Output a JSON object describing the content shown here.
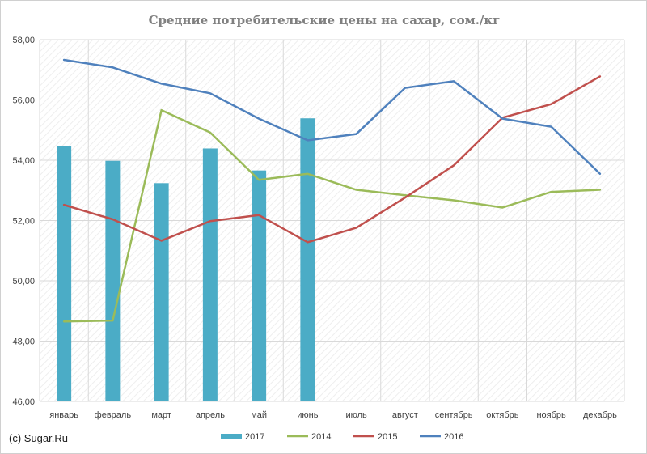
{
  "chart_data": {
    "type": "bar+line",
    "title": "Средние потребительские цены на сахар, сом./кг",
    "categories": [
      "январь",
      "февраль",
      "март",
      "апрель",
      "май",
      "июнь",
      "июль",
      "август",
      "сентябрь",
      "октябрь",
      "ноябрь",
      "декабрь"
    ],
    "ylim": [
      46,
      58
    ],
    "yticks": [
      "46,00",
      "48,00",
      "50,00",
      "52,00",
      "54,00",
      "56,00",
      "58,00"
    ],
    "grid": true,
    "legend_position": "bottom",
    "series": [
      {
        "name": "2017",
        "kind": "bar",
        "color": "#4bacc6",
        "values": [
          54.47,
          53.98,
          53.24,
          54.39,
          53.66,
          55.39,
          null,
          null,
          null,
          null,
          null,
          null
        ]
      },
      {
        "name": "2014",
        "kind": "line",
        "color": "#9bbb59",
        "values": [
          48.65,
          48.68,
          55.66,
          54.92,
          53.35,
          53.55,
          53.02,
          52.84,
          52.67,
          52.43,
          52.95,
          53.02
        ]
      },
      {
        "name": "2015",
        "kind": "line",
        "color": "#c0504d",
        "values": [
          52.52,
          52.04,
          51.33,
          51.98,
          52.18,
          51.28,
          51.76,
          52.76,
          53.83,
          55.41,
          55.86,
          56.78
        ]
      },
      {
        "name": "2016",
        "kind": "line",
        "color": "#4f81bd",
        "values": [
          57.33,
          57.08,
          56.54,
          56.22,
          55.38,
          54.66,
          54.87,
          56.4,
          56.62,
          55.38,
          55.11,
          53.55
        ]
      }
    ]
  },
  "credit": "(c) Sugar.Ru"
}
